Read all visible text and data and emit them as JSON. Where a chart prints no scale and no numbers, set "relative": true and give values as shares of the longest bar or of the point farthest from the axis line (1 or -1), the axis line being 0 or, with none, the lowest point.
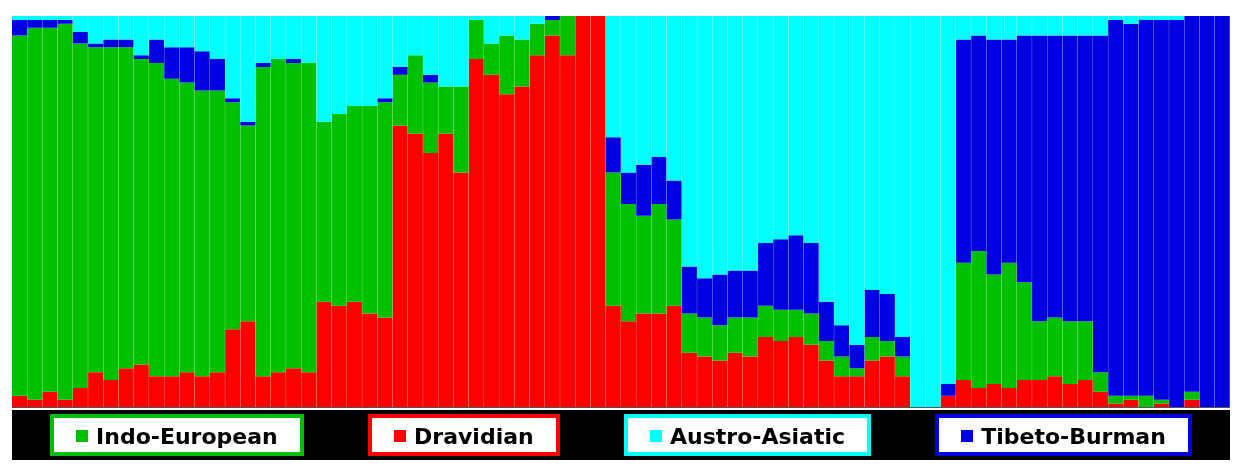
{
  "chart_data": {
    "type": "bar",
    "stacked": true,
    "relative": true,
    "legend": "bottom",
    "categories": [
      null,
      null,
      null,
      null,
      null,
      null,
      null,
      null,
      null,
      null,
      null,
      null,
      null,
      null,
      null,
      null,
      null,
      null,
      null,
      null,
      null,
      null,
      null,
      null,
      null,
      null,
      null,
      null,
      null,
      null,
      null,
      null,
      null,
      null,
      null,
      null,
      null,
      null,
      null,
      null,
      null,
      null,
      null,
      null,
      null,
      null,
      null,
      null,
      null,
      null,
      null,
      null,
      null,
      null,
      null,
      null,
      null,
      null,
      null,
      null,
      null,
      null,
      null,
      null,
      null,
      null,
      null,
      null,
      null,
      null,
      null,
      null,
      null,
      null,
      null,
      null,
      null,
      null,
      null,
      null
    ],
    "series": [
      {
        "name": "Dravidian",
        "color": "#ff0000",
        "values": [
          0.03,
          0.02,
          0.04,
          0.02,
          0.05,
          0.09,
          0.07,
          0.1,
          0.11,
          0.08,
          0.08,
          0.09,
          0.08,
          0.09,
          0.2,
          0.22,
          0.08,
          0.09,
          0.1,
          0.09,
          0.27,
          0.26,
          0.27,
          0.24,
          0.23,
          0.72,
          0.7,
          0.65,
          0.7,
          0.6,
          0.89,
          0.85,
          0.8,
          0.82,
          0.9,
          0.95,
          0.9,
          1,
          1,
          0.26,
          0.22,
          0.24,
          0.24,
          0.26,
          0.14,
          0.13,
          0.12,
          0.14,
          0.13,
          0.18,
          0.17,
          0.18,
          0.16,
          0.12,
          0.08,
          0.08,
          0.12,
          0.13,
          0.08,
          0,
          0,
          0.03,
          0.07,
          0.05,
          0.06,
          0.05,
          0.07,
          0.07,
          0.08,
          0.06,
          0.07,
          0.04,
          0.01,
          0.02,
          0,
          0.01,
          0,
          0.02,
          0,
          0
        ]
      },
      {
        "name": "Indo-European",
        "color": "#00c000",
        "values": [
          0.92,
          0.95,
          0.93,
          0.96,
          0.88,
          0.83,
          0.85,
          0.82,
          0.78,
          0.8,
          0.76,
          0.74,
          0.73,
          0.72,
          0.58,
          0.5,
          0.79,
          0.8,
          0.78,
          0.79,
          0.46,
          0.49,
          0.5,
          0.53,
          0.55,
          0.13,
          0.2,
          0.18,
          0.12,
          0.22,
          0.1,
          0.08,
          0.15,
          0.12,
          0.08,
          0.04,
          0.1,
          0,
          0,
          0.34,
          0.3,
          0.25,
          0.28,
          0.22,
          0.1,
          0.1,
          0.09,
          0.09,
          0.1,
          0.08,
          0.08,
          0.07,
          0.08,
          0.05,
          0.05,
          0.02,
          0.06,
          0.04,
          0.05,
          0,
          0,
          0,
          0.3,
          0.35,
          0.28,
          0.32,
          0.25,
          0.15,
          0.15,
          0.16,
          0.15,
          0.05,
          0.02,
          0.01,
          0.03,
          0.01,
          0,
          0.02,
          0,
          0
        ]
      },
      {
        "name": "Tibeto-Burman",
        "color": "#0000e0",
        "values": [
          0.04,
          0.02,
          0.02,
          0.01,
          0.03,
          0.01,
          0.02,
          0.02,
          0.01,
          0.06,
          0.08,
          0.09,
          0.1,
          0.08,
          0.01,
          0.01,
          0.01,
          0,
          0.01,
          0,
          0,
          0,
          0,
          0,
          0.01,
          0.02,
          0,
          0.02,
          0,
          0,
          0,
          0,
          0,
          0,
          0,
          0.01,
          0,
          0,
          0,
          0.09,
          0.08,
          0.13,
          0.12,
          0.1,
          0.12,
          0.1,
          0.13,
          0.12,
          0.12,
          0.16,
          0.18,
          0.19,
          0.18,
          0.1,
          0.08,
          0.06,
          0.12,
          0.12,
          0.05,
          0,
          0,
          0.03,
          0.57,
          0.55,
          0.6,
          0.57,
          0.63,
          0.73,
          0.72,
          0.73,
          0.73,
          0.86,
          0.96,
          0.95,
          0.96,
          0.97,
          0.99,
          0.96,
          1,
          1
        ]
      },
      {
        "name": "Austro-Asiatic",
        "color": "#00ffff",
        "values": [
          0.01,
          0.01,
          0.01,
          0.01,
          0.04,
          0.07,
          0.06,
          0.06,
          0.1,
          0.06,
          0.08,
          0.08,
          0.09,
          0.11,
          0.21,
          0.27,
          0.12,
          0.11,
          0.11,
          0.12,
          0.27,
          0.25,
          0.23,
          0.23,
          0.21,
          0.13,
          0.1,
          0.15,
          0.18,
          0.18,
          0.01,
          0.07,
          0.05,
          0.06,
          0.02,
          0,
          0,
          0,
          0,
          0.31,
          0.4,
          0.38,
          0.36,
          0.42,
          0.64,
          0.67,
          0.66,
          0.65,
          0.65,
          0.58,
          0.57,
          0.56,
          0.58,
          0.73,
          0.79,
          0.84,
          0.7,
          0.71,
          0.82,
          1,
          1,
          0.94,
          0.06,
          0.05,
          0.06,
          0.06,
          0.05,
          0.05,
          0.05,
          0.05,
          0.05,
          0.05,
          0.01,
          0.02,
          0.01,
          0.01,
          0.01,
          0,
          0,
          0
        ]
      }
    ]
  }
}
